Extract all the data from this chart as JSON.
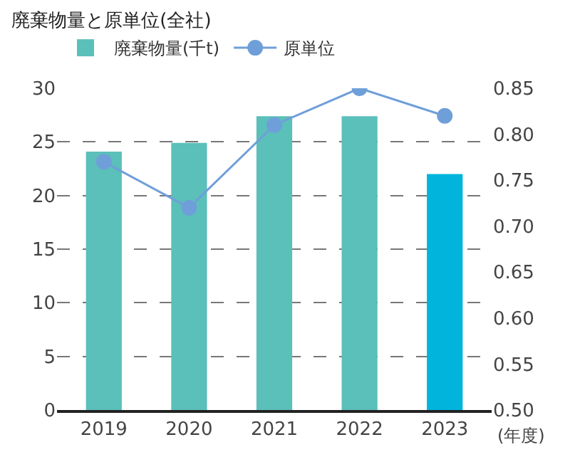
{
  "chart_data": {
    "type": "bar",
    "title": "廃棄物量と原単位(全社)",
    "xlabel": "(年度)",
    "categories": [
      "2019",
      "2020",
      "2021",
      "2022",
      "2023"
    ],
    "series": [
      {
        "name": "廃棄物量(千t)",
        "colors": [
          "#5bbfba",
          "#5bbfba",
          "#5bbfba",
          "#5bbfba",
          "#00b4dc"
        ],
        "values": [
          24.1,
          24.9,
          27.4,
          27.4,
          22.0
        ]
      },
      {
        "name": "原単位",
        "type": "line",
        "axis": "y2",
        "color": "#6f9fd8",
        "marker": "circle",
        "values": [
          0.77,
          0.72,
          0.81,
          0.85,
          0.82
        ]
      }
    ],
    "ylim": [
      0,
      30
    ],
    "yticks": [
      0,
      5,
      10,
      15,
      20,
      25,
      30
    ],
    "y2lim": [
      0.5,
      0.85
    ],
    "y2ticks": [
      {
        "value": 0.5,
        "label": "0.50"
      },
      {
        "value": 0.55,
        "label": "0.55"
      },
      {
        "value": 0.6,
        "label": "0.60"
      },
      {
        "value": 0.65,
        "label": "0.65"
      },
      {
        "value": 0.7,
        "label": "0.70"
      },
      {
        "value": 0.75,
        "label": "0.75"
      },
      {
        "value": 0.8,
        "label": "0.80"
      },
      {
        "value": 0.85,
        "label": "0.85"
      }
    ],
    "grid": "y",
    "legend": "top left"
  }
}
